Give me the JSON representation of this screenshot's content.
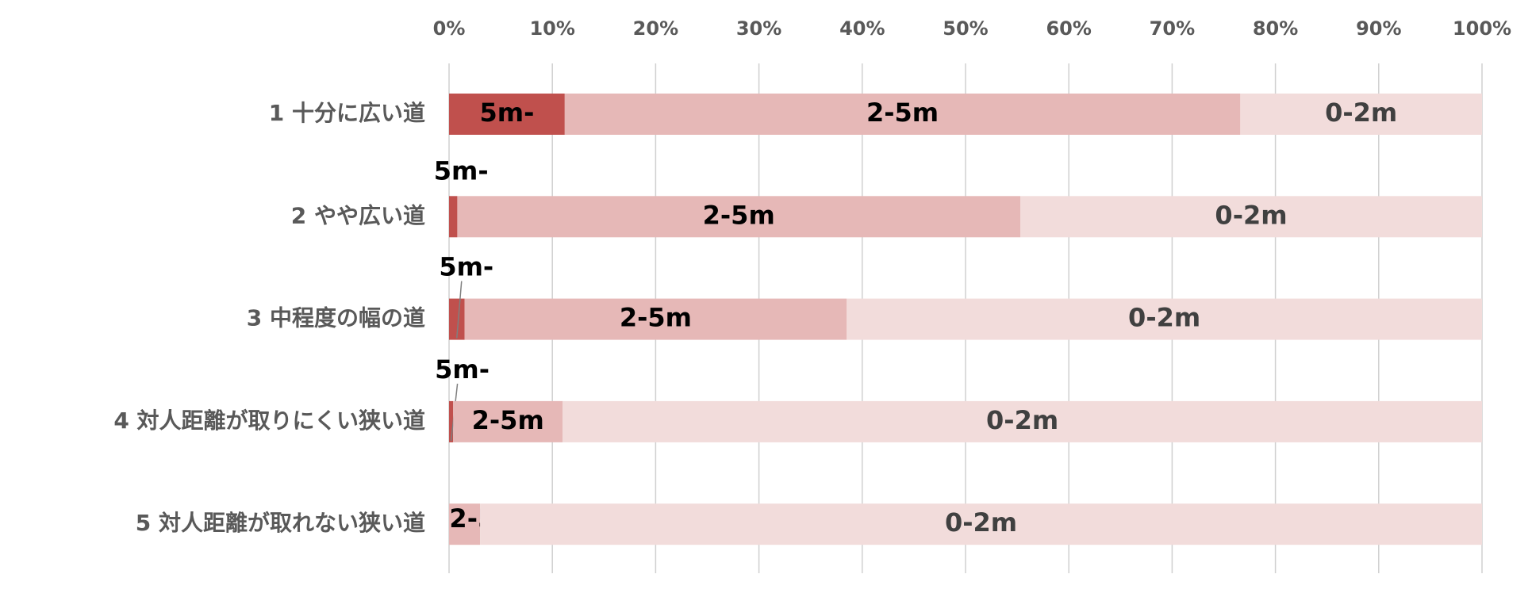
{
  "chart_data": {
    "type": "stacked-barh",
    "categories": [
      "1 十分に広い道",
      "2 やや広い道",
      "3 中程度の幅の道",
      "4 対人距離が取りにくい狭い道",
      "5 対人距離が取れない狭い道"
    ],
    "series": [
      {
        "name": "5m-",
        "color": "#c0504d",
        "values": [
          11.2,
          0.8,
          1.5,
          0.4,
          0
        ]
      },
      {
        "name": "2-5m",
        "color": "#e6b8b7",
        "values": [
          65.4,
          54.5,
          37.0,
          10.6,
          3.0
        ]
      },
      {
        "name": "0-2m",
        "color": "#f2dcdb",
        "values": [
          23.4,
          44.7,
          61.5,
          89.0,
          97.0
        ]
      }
    ],
    "xlim": [
      0,
      100
    ],
    "xticks": [
      {
        "value": 0,
        "label": "0%"
      },
      {
        "value": 10,
        "label": "10%"
      },
      {
        "value": 20,
        "label": "20%"
      },
      {
        "value": 30,
        "label": "30%"
      },
      {
        "value": 40,
        "label": "40%"
      },
      {
        "value": 50,
        "label": "50%"
      },
      {
        "value": 60,
        "label": "60%"
      },
      {
        "value": 70,
        "label": "70%"
      },
      {
        "value": 80,
        "label": "80%"
      },
      {
        "value": 90,
        "label": "90%"
      },
      {
        "value": 100,
        "label": "100%"
      }
    ],
    "grid": true
  }
}
